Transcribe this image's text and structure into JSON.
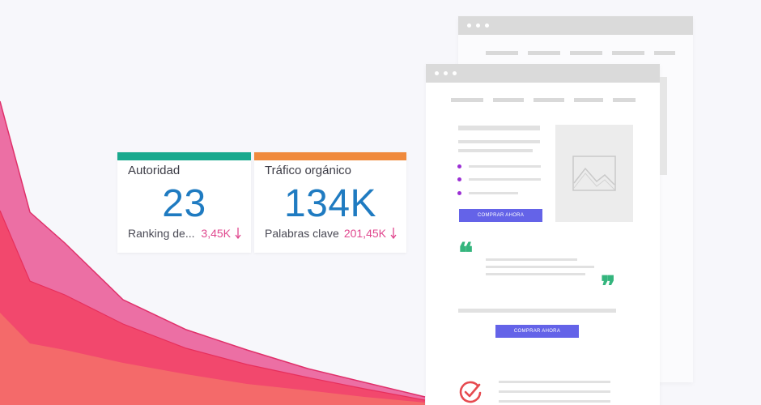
{
  "cards": {
    "autoridad": {
      "title": "Autoridad",
      "value": "23",
      "sub_label": "Ranking de...",
      "delta": "3,45K",
      "accent": "#19a98e"
    },
    "trafico": {
      "title": "Tráfico orgánico",
      "value": "134K",
      "sub_label": "Palabras clave",
      "delta": "201,45K",
      "accent": "#f08a3c"
    }
  },
  "page_mockup": {
    "cta_1": "COMPRAR AHORA",
    "cta_2": "COMPRAR AHORA",
    "quote_open": "❝",
    "quote_close": "❞",
    "icons": [
      "image-placeholder-icon",
      "check-circle-icon",
      "arrow-down-icon"
    ]
  },
  "colors": {
    "value_blue": "#1f7bc1",
    "delta_pink": "#e0478e",
    "cta_purple": "#6463e8",
    "quote_green": "#34b57d",
    "check_red": "#e64a4f",
    "area_back": "#ec6fa4",
    "area_mid": "#f2486d",
    "area_front": "#f46a6a"
  }
}
